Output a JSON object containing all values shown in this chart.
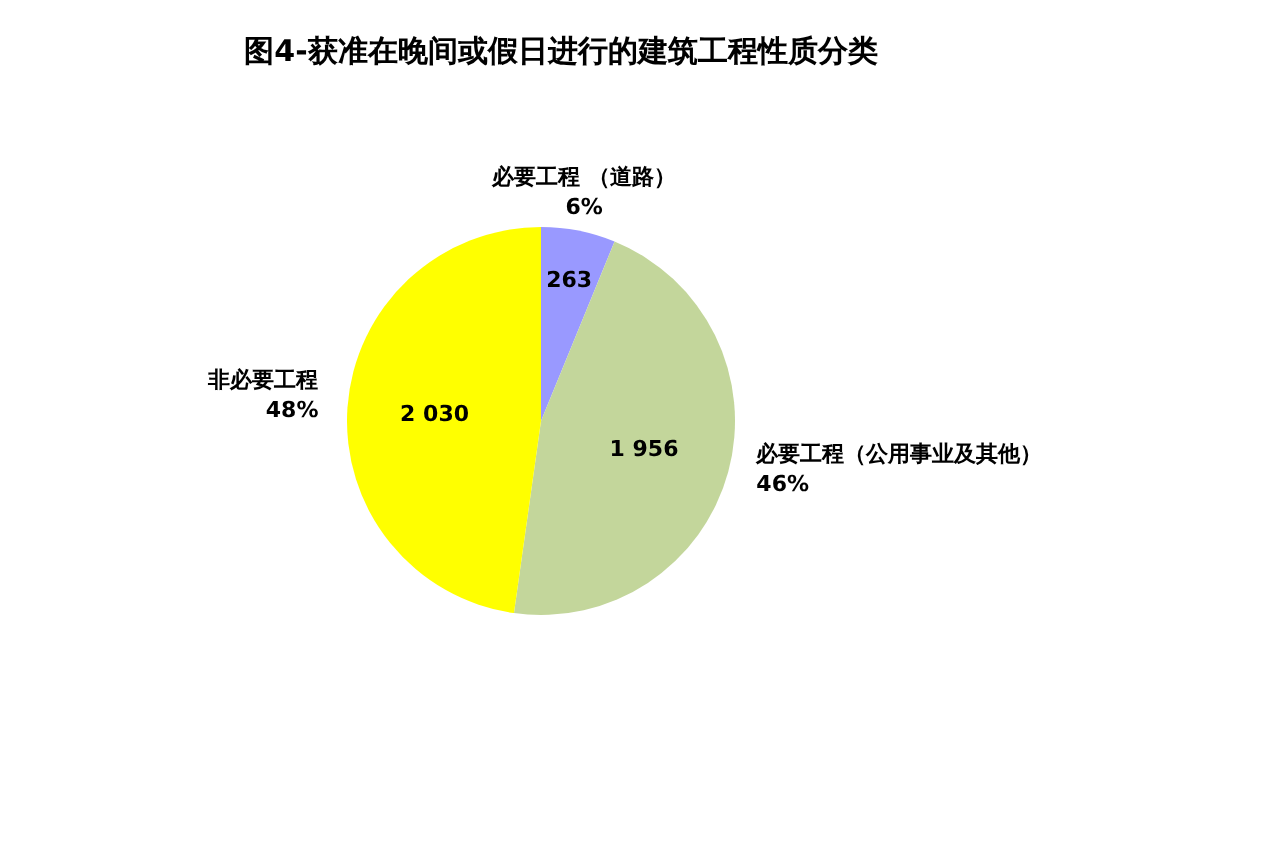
{
  "chart_data": {
    "type": "pie",
    "title": "图4-获准在晚间或假日进行的建筑工程性质分类",
    "categories": [
      "必要工程 （道路）",
      "必要工程（公用事业及其他）",
      "非必要工程"
    ],
    "values": [
      263,
      1956,
      2030
    ],
    "value_labels": [
      "263",
      "1 956",
      "2 030"
    ],
    "colors": [
      "#9999ff",
      "#c3d69b",
      "#ffff00"
    ],
    "annotations": [
      "6%",
      "46%",
      "48%"
    ]
  }
}
